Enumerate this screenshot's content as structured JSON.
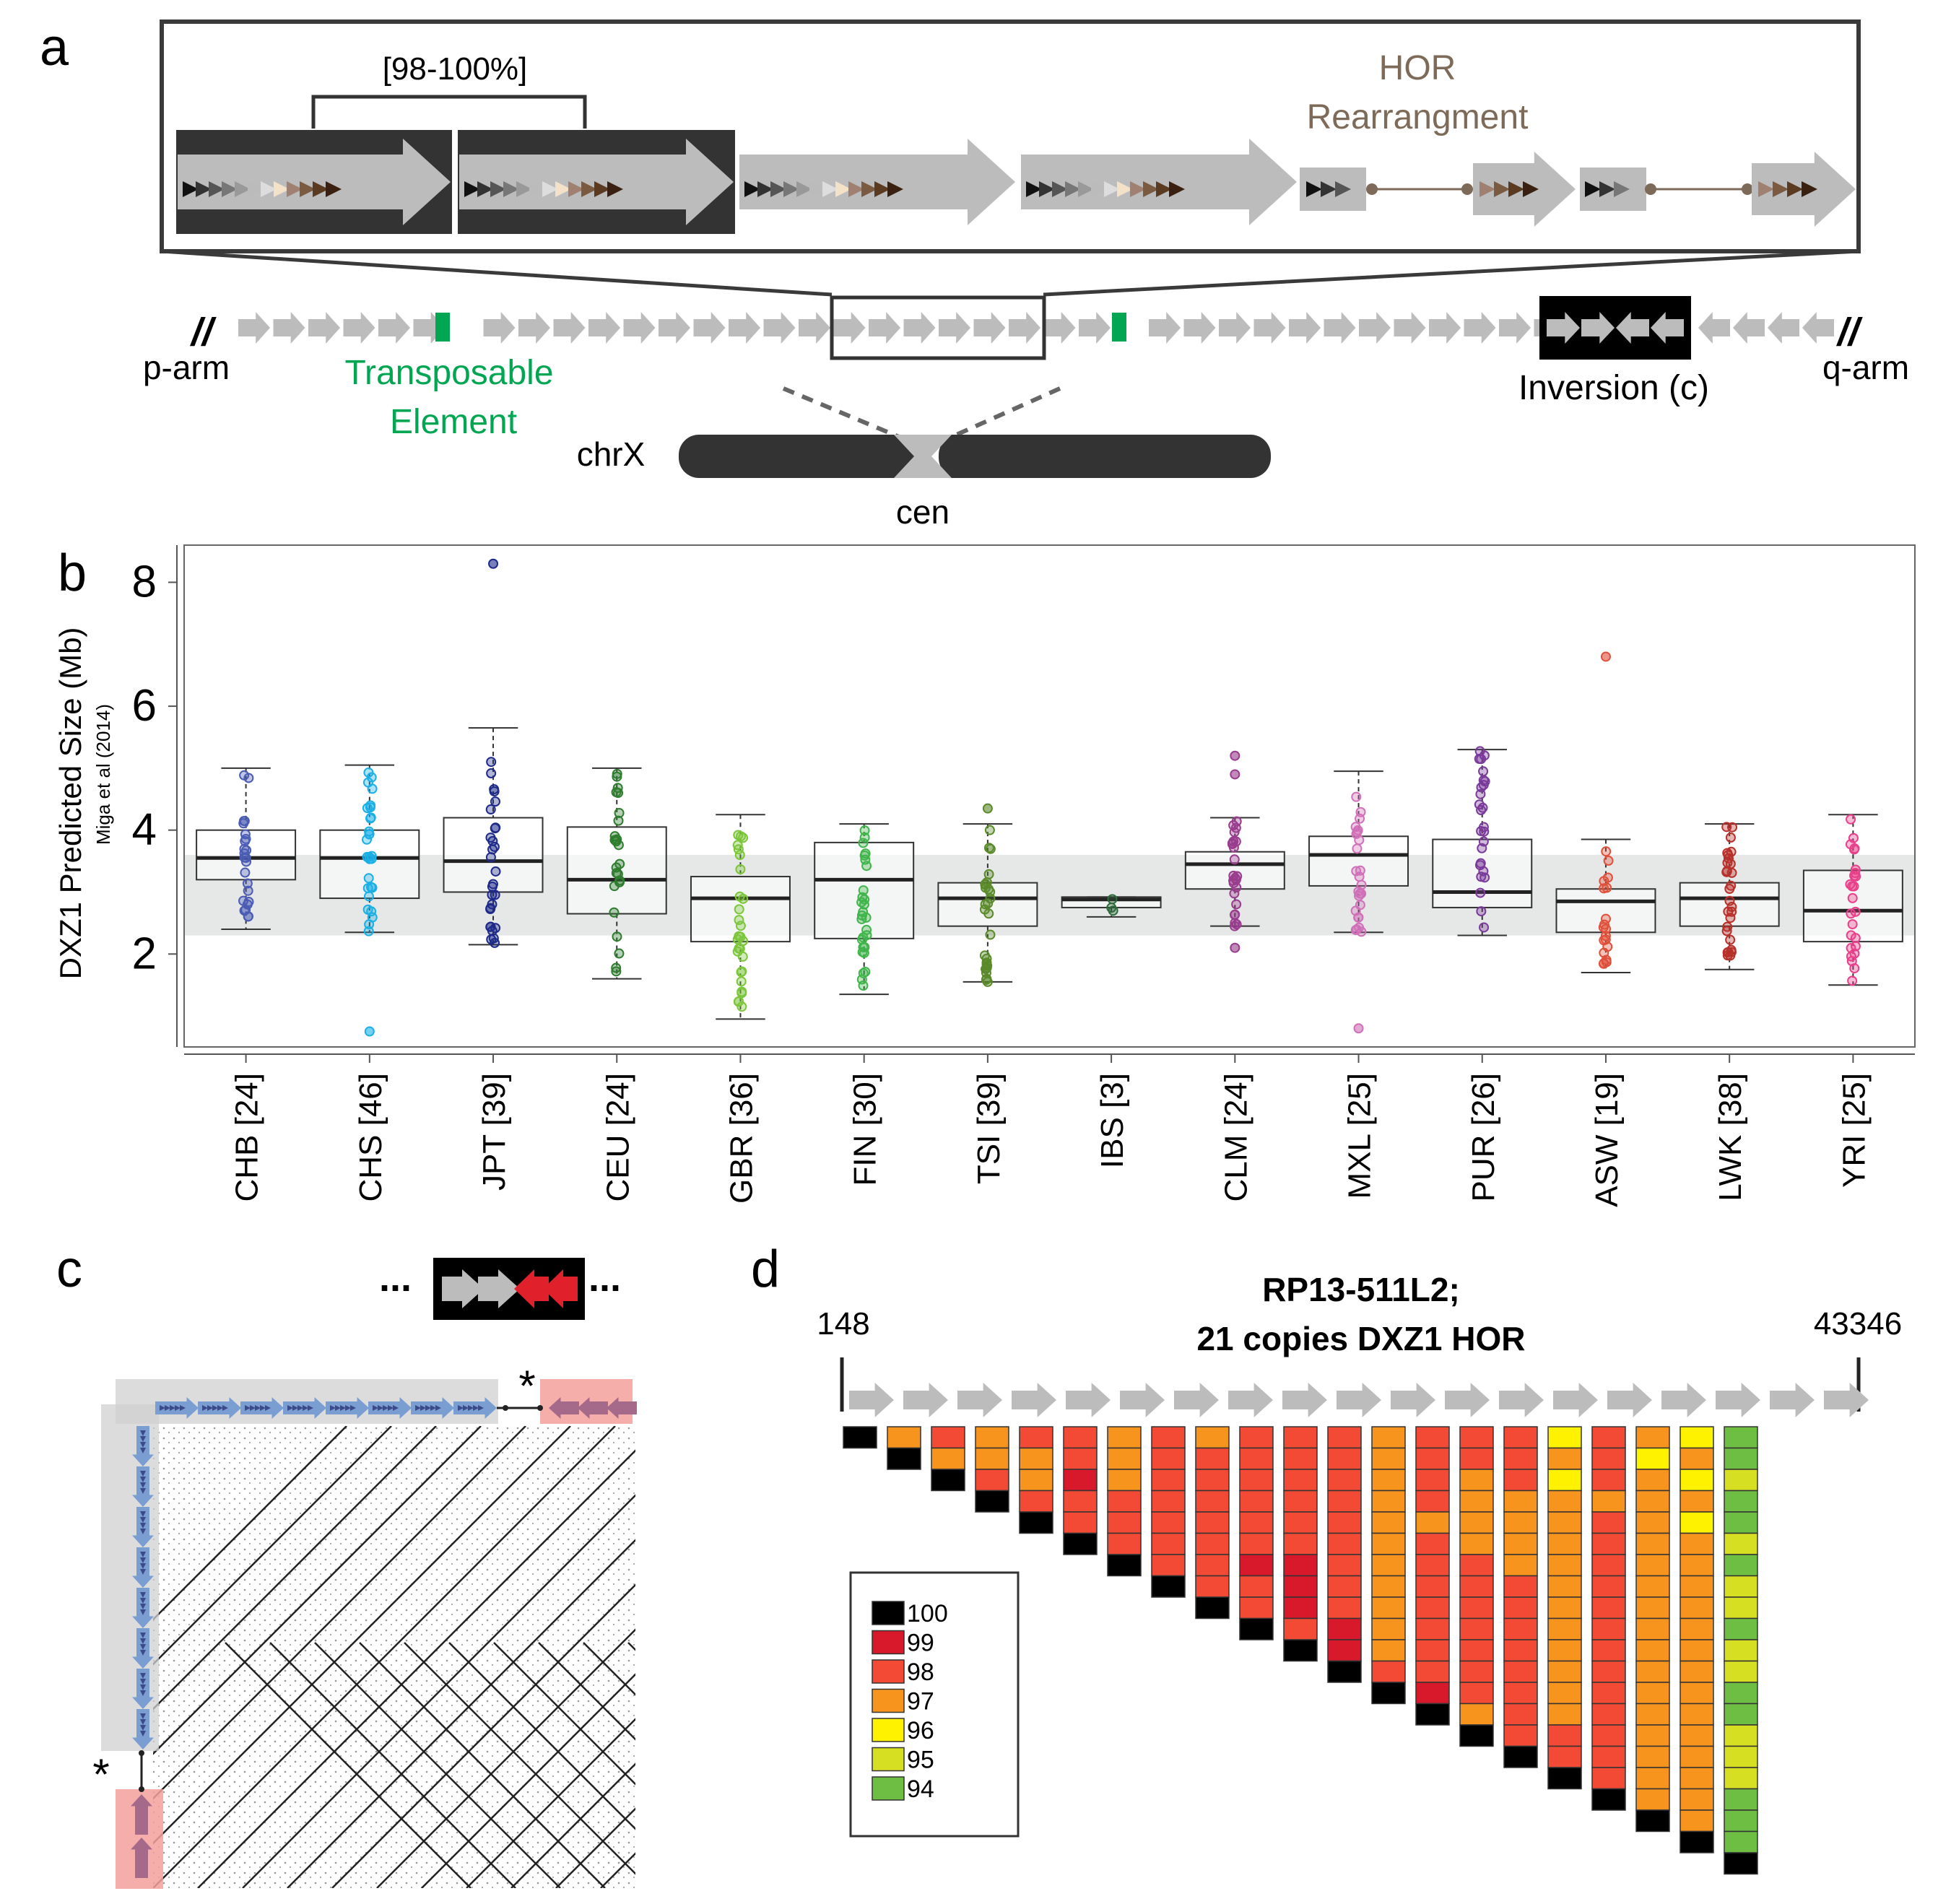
{
  "panels": {
    "a": {
      "letter": "a",
      "bracket_label": "[98-100%]",
      "hor_title_line1": "HOR",
      "hor_title_line2": "Rearrangment",
      "p_arm": "p-arm",
      "q_arm": "q-arm",
      "te_line1": "Transposable",
      "te_line2": "Element",
      "inversion": "Inversion (c)",
      "chrom": "chrX",
      "cen": "cen",
      "break_mark": "//"
    },
    "b": {
      "letter": "b"
    },
    "c": {
      "letter": "c",
      "ellipsis": "...",
      "asterisk": "*"
    },
    "d": {
      "letter": "d",
      "title_line1": "RP13-511L2;",
      "title_line2": "21 copies DXZ1 HOR",
      "start_coord": "148",
      "end_coord": "43346"
    }
  },
  "colors": {
    "gray_arrow": "#bcbcbc",
    "dark_box": "#333333",
    "te_green": "#00a651",
    "hor_brown": "#7d6a58",
    "blue_arrow": "#7a9ed2",
    "red_arrow": "#e0202a",
    "pink_shade": "#f4a09c"
  },
  "chart_data": [
    {
      "type": "box",
      "ylabel": "DXZ1 Predicted Size (Mb)",
      "ylabel_sub": "Miga et al (2014)",
      "ylim": [
        0.5,
        8.6
      ],
      "yticks": [
        2,
        4,
        6,
        8
      ],
      "shaded_band": [
        2.3,
        3.6
      ],
      "groups": [
        {
          "label": "CHB [24]",
          "color": "#4a5cb4",
          "q1": 3.2,
          "median": 3.55,
          "q3": 4.0,
          "whisker_low": 2.4,
          "whisker_high": 5.0,
          "outliers": []
        },
        {
          "label": "CHS [46]",
          "color": "#1ab0e6",
          "q1": 2.9,
          "median": 3.55,
          "q3": 4.0,
          "whisker_low": 2.35,
          "whisker_high": 5.05,
          "outliers": [
            0.75
          ]
        },
        {
          "label": "JPT [39]",
          "color": "#1e2a8a",
          "q1": 3.0,
          "median": 3.5,
          "q3": 4.2,
          "whisker_low": 2.15,
          "whisker_high": 5.65,
          "outliers": [
            8.3
          ]
        },
        {
          "label": "CEU [24]",
          "color": "#2e7d2e",
          "q1": 2.65,
          "median": 3.2,
          "q3": 4.05,
          "whisker_low": 1.6,
          "whisker_high": 5.0,
          "outliers": []
        },
        {
          "label": "GBR [36]",
          "color": "#7cc63a",
          "q1": 2.2,
          "median": 2.9,
          "q3": 3.25,
          "whisker_low": 0.95,
          "whisker_high": 4.25,
          "outliers": []
        },
        {
          "label": "FIN [30]",
          "color": "#3fb54a",
          "q1": 2.25,
          "median": 3.2,
          "q3": 3.8,
          "whisker_low": 1.35,
          "whisker_high": 4.1,
          "outliers": []
        },
        {
          "label": "TSI [39]",
          "color": "#5a8a2a",
          "q1": 2.45,
          "median": 2.9,
          "q3": 3.15,
          "whisker_low": 1.55,
          "whisker_high": 4.1,
          "outliers": [
            4.35
          ]
        },
        {
          "label": "IBS [3]",
          "color": "#2e6b3a",
          "q1": 2.75,
          "median": 2.88,
          "q3": 2.92,
          "whisker_low": 2.6,
          "whisker_high": 2.92,
          "outliers": []
        },
        {
          "label": "CLM [24]",
          "color": "#9a3c8e",
          "q1": 3.05,
          "median": 3.45,
          "q3": 3.65,
          "whisker_low": 2.45,
          "whisker_high": 4.2,
          "outliers": [
            2.1,
            4.9,
            5.2
          ]
        },
        {
          "label": "MXL [25]",
          "color": "#d070b8",
          "q1": 3.1,
          "median": 3.6,
          "q3": 3.9,
          "whisker_low": 2.35,
          "whisker_high": 4.95,
          "outliers": [
            0.8
          ]
        },
        {
          "label": "PUR [26]",
          "color": "#7a3a9a",
          "q1": 2.75,
          "median": 3.0,
          "q3": 3.85,
          "whisker_low": 2.3,
          "whisker_high": 5.3,
          "outliers": []
        },
        {
          "label": "ASW [19]",
          "color": "#e0503a",
          "q1": 2.35,
          "median": 2.85,
          "q3": 3.05,
          "whisker_low": 1.7,
          "whisker_high": 3.85,
          "outliers": [
            6.8
          ]
        },
        {
          "label": "LWK [38]",
          "color": "#b8302a",
          "q1": 2.45,
          "median": 2.9,
          "q3": 3.15,
          "whisker_low": 1.75,
          "whisker_high": 4.1,
          "outliers": []
        },
        {
          "label": "YRI [25]",
          "color": "#e8408a",
          "q1": 2.2,
          "median": 2.7,
          "q3": 3.35,
          "whisker_low": 1.5,
          "whisker_high": 4.25,
          "outliers": []
        }
      ]
    },
    {
      "type": "heatmap",
      "title": "RP13-511L2; 21 copies DXZ1 HOR",
      "legend": [
        {
          "label": "100",
          "color": "#000000"
        },
        {
          "label": "99",
          "color": "#d7192b"
        },
        {
          "label": "98",
          "color": "#f24a34"
        },
        {
          "label": "97",
          "color": "#f7941d"
        },
        {
          "label": "96",
          "color": "#fff200"
        },
        {
          "label": "95",
          "color": "#d7df23"
        },
        {
          "label": "94",
          "color": "#6fbe44"
        }
      ]
    }
  ]
}
